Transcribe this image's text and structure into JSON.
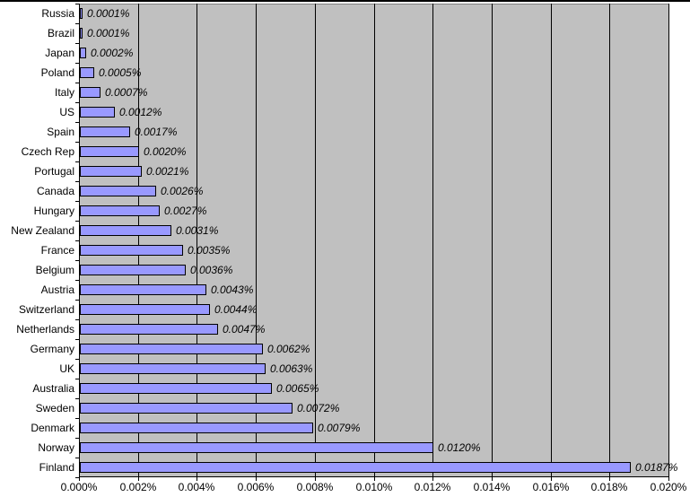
{
  "chart_data": {
    "type": "bar",
    "orientation": "horizontal",
    "title": "",
    "xlabel": "",
    "ylabel": "",
    "categories": [
      "Russia",
      "Brazil",
      "Japan",
      "Poland",
      "Italy",
      "US",
      "Spain",
      "Czech Rep",
      "Portugal",
      "Canada",
      "Hungary",
      "New Zealand",
      "France",
      "Belgium",
      "Austria",
      "Switzerland",
      "Netherlands",
      "Germany",
      "UK",
      "Australia",
      "Sweden",
      "Denmark",
      "Norway",
      "Finland"
    ],
    "values": [
      0.0001,
      0.0001,
      0.0002,
      0.0005,
      0.0007,
      0.0012,
      0.0017,
      0.002,
      0.0021,
      0.0026,
      0.0027,
      0.0031,
      0.0035,
      0.0036,
      0.0043,
      0.0044,
      0.0047,
      0.0062,
      0.0063,
      0.0065,
      0.0072,
      0.0079,
      0.012,
      0.0187
    ],
    "data_labels": [
      "0.0001%",
      "0.0001%",
      "0.0002%",
      "0.0005%",
      "0.0007%",
      "0.0012%",
      "0.0017%",
      "0.0020%",
      "0.0021%",
      "0.0026%",
      "0.0027%",
      "0.0031%",
      "0.0035%",
      "0.0036%",
      "0.0043%",
      "0.0044%",
      "0.0047%",
      "0.0062%",
      "0.0063%",
      "0.0065%",
      "0.0072%",
      "0.0079%",
      "0.0120%",
      "0.0187%"
    ],
    "xlim": [
      0,
      0.02
    ],
    "x_tick_values": [
      0,
      0.002,
      0.004,
      0.006,
      0.008,
      0.01,
      0.012,
      0.014,
      0.016,
      0.018,
      0.02
    ],
    "x_tick_labels": [
      "0.000%",
      "0.002%",
      "0.004%",
      "0.006%",
      "0.008%",
      "0.010%",
      "0.012%",
      "0.014%",
      "0.016%",
      "0.018%",
      "0.020%"
    ],
    "grid": "vertical-only",
    "legend": "none",
    "colors": {
      "page_bg": "#ffffff",
      "top_border": "#000000",
      "plot_bg": "#c0c0c0",
      "plot_border": "#808080",
      "bar_fill": "#9999ff",
      "bar_border": "#000000",
      "gridline": "#000000",
      "axis_line": "#000000",
      "text": "#000000"
    }
  }
}
